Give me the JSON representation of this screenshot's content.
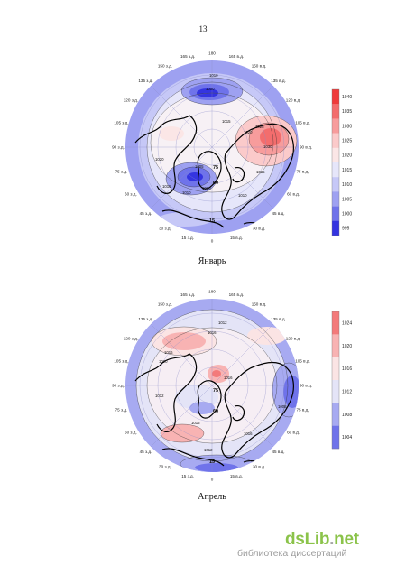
{
  "page_number": "13",
  "figures": [
    {
      "id": "jan",
      "caption": "Январь",
      "longitude_labels": [
        "180",
        "165 в.д.",
        "150 в.д.",
        "135 в.д.",
        "120 в.д.",
        "105 в.д.",
        "90 в.д.",
        "75 в.д.",
        "60 в.д.",
        "45 в.д.",
        "30 в.д.",
        "15 в.д.",
        "0",
        "15 з.д.",
        "30 з.д.",
        "45 з.д.",
        "60 з.д.",
        "75 з.д.",
        "90 з.д.",
        "105 з.д.",
        "120 з.д.",
        "135 з.д.",
        "150 з.д.",
        "165 з.д."
      ],
      "latitude_labels": [
        "75",
        "60",
        "15"
      ],
      "isobar_labels": [
        "1010",
        "1015",
        "1020",
        "1025",
        "1030",
        "1015",
        "1010",
        "1005",
        "1000",
        "1000",
        "1015",
        "1010",
        "1020"
      ],
      "colorbar": {
        "ticks": [
          "1040",
          "1035",
          "1030",
          "1025",
          "1020",
          "1015",
          "1010",
          "1005",
          "1000",
          "995"
        ],
        "colors": [
          "#ef3b3b",
          "#f36d6d",
          "#f79c9c",
          "#fbcaca",
          "#fbe6e6",
          "#e6e6fa",
          "#c6c8f7",
          "#9ea1f1",
          "#6f73ea",
          "#3434e0"
        ]
      }
    },
    {
      "id": "apr",
      "caption": "Апрель",
      "longitude_labels": [
        "180",
        "165 в.д.",
        "150 в.д.",
        "135 в.д.",
        "120 в.д.",
        "105 в.д.",
        "90 в.д.",
        "75 в.д.",
        "60 в.д.",
        "45 в.д.",
        "30 в.д.",
        "15 в.д.",
        "0",
        "15 з.д.",
        "30 з.д.",
        "45 з.д.",
        "60 з.д.",
        "75 з.д.",
        "90 з.д.",
        "105 з.д.",
        "120 з.д.",
        "135 з.д.",
        "150 з.д.",
        "165 з.д."
      ],
      "latitude_labels": [
        "75",
        "60",
        "15"
      ],
      "isobar_labels": [
        "1012",
        "1016",
        "1016",
        "1020",
        "1012",
        "1016",
        "1008",
        "1016",
        "1012",
        "1016"
      ],
      "colorbar": {
        "ticks": [
          "1024",
          "1020",
          "1016",
          "1012",
          "1008",
          "1004"
        ],
        "colors": [
          "#f37a7a",
          "#f8b3b3",
          "#fbe4e4",
          "#e4e4f7",
          "#a7aaf1",
          "#6f73ea"
        ]
      }
    }
  ],
  "watermark": {
    "logo_main": "dsLib",
    "logo_dot": ".",
    "logo_tld": "net",
    "subtitle": "библиотека диссертаций"
  }
}
